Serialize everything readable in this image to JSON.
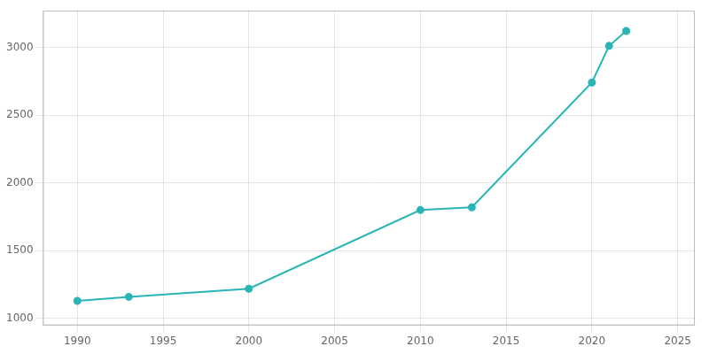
{
  "chart_data": {
    "type": "line",
    "x": [
      1990,
      1993,
      2000,
      2010,
      2013,
      2020,
      2021,
      2022
    ],
    "values": [
      1130,
      1160,
      1220,
      1800,
      1820,
      2740,
      3010,
      3120
    ],
    "color": "#2ab5b5",
    "marker": "circle",
    "xlim": [
      1988,
      2026
    ],
    "ylim": [
      950,
      3270
    ],
    "xticks": [
      1990,
      1995,
      2000,
      2005,
      2010,
      2015,
      2020,
      2025
    ],
    "yticks": [
      1000,
      1500,
      2000,
      2500,
      3000
    ],
    "grid": true
  }
}
